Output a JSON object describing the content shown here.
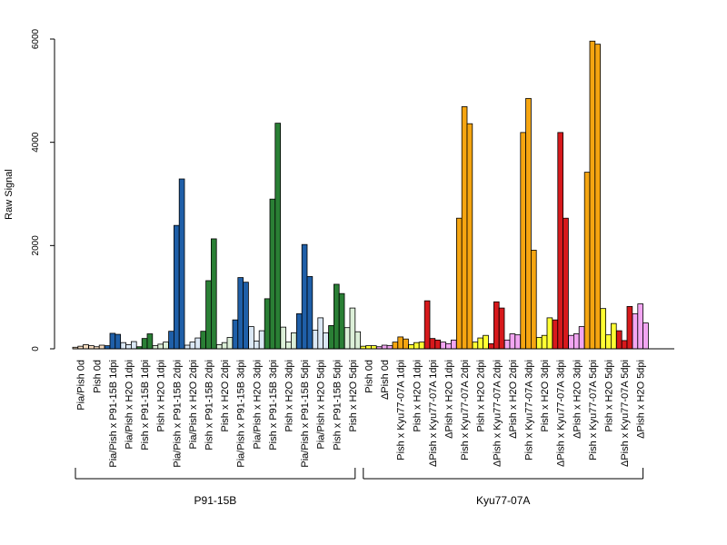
{
  "chart_data": {
    "type": "bar",
    "title": "",
    "xlabel": "",
    "ylabel": "Raw Signal",
    "ylim": [
      0,
      6000
    ],
    "yticks": [
      0,
      2000,
      4000,
      6000
    ],
    "grid": false,
    "legend": "none",
    "bars_per_group": 3,
    "categories": [
      {
        "label": "Pia/Pish 0d",
        "values": [
          30,
          50,
          80
        ],
        "color": "#f6dcc0"
      },
      {
        "label": "Pish 0d",
        "values": [
          60,
          40,
          70
        ],
        "color": "#f6dcc0"
      },
      {
        "label": "Pia/Pish x P91-15B 1dpi",
        "values": [
          60,
          300,
          280
        ],
        "color": "#1f5fa8"
      },
      {
        "label": "Pia/Pish x H2O 1dpi",
        "values": [
          120,
          80,
          140
        ],
        "color": "#dbe8f5"
      },
      {
        "label": "Pish x P91-15B 1dpi",
        "values": [
          40,
          200,
          290
        ],
        "color": "#2a7f35"
      },
      {
        "label": "Pish x H2O 1dpi",
        "values": [
          60,
          90,
          130
        ],
        "color": "#dcefd8"
      },
      {
        "label": "Pia/Pish x P91-15B 2dpi",
        "values": [
          340,
          2390,
          3290
        ],
        "color": "#1f5fa8"
      },
      {
        "label": "Pia/Pish x H2O 2dpi",
        "values": [
          70,
          130,
          210
        ],
        "color": "#dbe8f5"
      },
      {
        "label": "Pish x P91-15B 2dpi",
        "values": [
          340,
          1320,
          2130
        ],
        "color": "#2a7f35"
      },
      {
        "label": "Pish x H2O 2dpi",
        "values": [
          80,
          120,
          220
        ],
        "color": "#dcefd8"
      },
      {
        "label": "Pia/Pish x P91-15B 3dpi",
        "values": [
          560,
          1380,
          1290
        ],
        "color": "#1f5fa8"
      },
      {
        "label": "Pia/Pish x H2O 3dpi",
        "values": [
          430,
          150,
          350
        ],
        "color": "#dbe8f5"
      },
      {
        "label": "Pish x P91-15B 3dpi",
        "values": [
          970,
          2900,
          4370
        ],
        "color": "#2a7f35"
      },
      {
        "label": "Pish x H2O 3dpi",
        "values": [
          420,
          130,
          310
        ],
        "color": "#dcefd8"
      },
      {
        "label": "Pia/Pish x P91-15B 5dpi",
        "values": [
          680,
          2020,
          1400
        ],
        "color": "#1f5fa8"
      },
      {
        "label": "Pia/Pish x H2O 5dpi",
        "values": [
          360,
          600,
          310
        ],
        "color": "#dbe8f5"
      },
      {
        "label": "Pish x P91-15B 5dpi",
        "values": [
          450,
          1250,
          1070
        ],
        "color": "#2a7f35"
      },
      {
        "label": "Pish x H2O 5dpi",
        "values": [
          410,
          790,
          330
        ],
        "color": "#dcefd8"
      },
      {
        "label": "Pish 0d",
        "values": [
          50,
          60,
          60
        ],
        "color": "#ffff33"
      },
      {
        "label": "ΔPish 0d",
        "values": [
          40,
          70,
          60
        ],
        "color": "#f2a6f2"
      },
      {
        "label": "Pish x Kyu77-07A 1dpi",
        "values": [
          130,
          230,
          190
        ],
        "color": "#f5a511"
      },
      {
        "label": "Pish x H2O 1dpi",
        "values": [
          80,
          120,
          130
        ],
        "color": "#ffff33"
      },
      {
        "label": "ΔPish x Kyu77-07A 1dpi",
        "values": [
          930,
          200,
          170
        ],
        "color": "#d7191c"
      },
      {
        "label": "ΔPish x H2O 1dpi",
        "values": [
          130,
          100,
          170
        ],
        "color": "#f2a6f2"
      },
      {
        "label": "Pish x Kyu77-07A 2dpi",
        "values": [
          2530,
          4690,
          4360
        ],
        "color": "#f5a511"
      },
      {
        "label": "Pish x H2O 2dpi",
        "values": [
          130,
          210,
          260
        ],
        "color": "#ffff33"
      },
      {
        "label": "ΔPish x Kyu77-07A 2dpi",
        "values": [
          100,
          910,
          790
        ],
        "color": "#d7191c"
      },
      {
        "label": "ΔPish x H2O 2dpi",
        "values": [
          170,
          290,
          270
        ],
        "color": "#f2a6f2"
      },
      {
        "label": "Pish x Kyu77-07A 3dpi",
        "values": [
          4190,
          4850,
          1910
        ],
        "color": "#f5a511"
      },
      {
        "label": "Pish x H2O 3dpi",
        "values": [
          220,
          260,
          600
        ],
        "color": "#ffff33"
      },
      {
        "label": "ΔPish x Kyu77-07A 3dpi",
        "values": [
          560,
          4190,
          2530
        ],
        "color": "#d7191c"
      },
      {
        "label": "ΔPish x H2O 3dpi",
        "values": [
          260,
          290,
          430
        ],
        "color": "#f2a6f2"
      },
      {
        "label": "Pish x Kyu77-07A 5dpi",
        "values": [
          3420,
          5960,
          5900
        ],
        "color": "#f5a511"
      },
      {
        "label": "Pish x H2O 5dpi",
        "values": [
          780,
          270,
          490
        ],
        "color": "#ffff33"
      },
      {
        "label": "ΔPish x Kyu77-07A 5dpi",
        "values": [
          350,
          160,
          820
        ],
        "color": "#d7191c"
      },
      {
        "label": "ΔPish x H2O 5dpi",
        "values": [
          680,
          870,
          500
        ],
        "color": "#f2a6f2"
      }
    ],
    "groups": [
      {
        "label": "P91-15B",
        "first": 0,
        "last": 17
      },
      {
        "label": "Kyu77-07A",
        "first": 18,
        "last": 35
      }
    ]
  }
}
